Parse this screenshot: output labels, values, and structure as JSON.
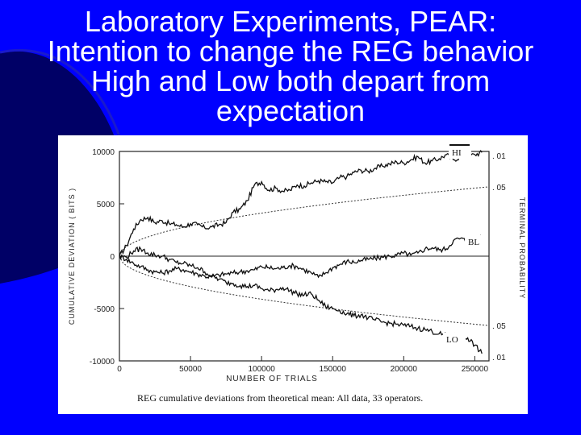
{
  "slide": {
    "title_lines": [
      "Laboratory Experiments, PEAR:",
      "Intention to change the REG behavior",
      "High and Low both depart from",
      "expectation"
    ],
    "background_color": "#0000ff",
    "accent_color": "#000066"
  },
  "chart_data": {
    "type": "line",
    "title": "",
    "caption": "REG cumulative deviations from theoretical mean: All data, 33 operators.",
    "xlabel": "NUMBER OF TRIALS",
    "ylabel": "CUMULATIVE DEVIATION ( BITS )",
    "y2label": "TERMINAL PROBABILITY",
    "xlim": [
      0,
      260000
    ],
    "ylim": [
      -10000,
      10000
    ],
    "x_ticks": [
      0,
      50000,
      100000,
      150000,
      200000,
      250000
    ],
    "y_ticks": [
      10000,
      5000,
      0,
      -5000,
      -10000
    ],
    "x_tick_labels": [
      "0",
      "50000",
      "100000",
      "150000",
      "200000",
      "250000"
    ],
    "y_tick_labels": [
      "10000",
      "5000",
      "0",
      "-5000",
      "-10000"
    ],
    "right_tick_labels": [
      ". 01",
      ". 05",
      ". 05",
      ". 01"
    ],
    "grid": false,
    "series": [
      {
        "name": "HI",
        "color": "#111111",
        "x": [
          0,
          5000,
          10000,
          15000,
          20000,
          25000,
          30000,
          35000,
          40000,
          45000,
          50000,
          55000,
          60000,
          65000,
          70000,
          75000,
          80000,
          85000,
          90000,
          95000,
          100000,
          105000,
          110000,
          115000,
          120000,
          125000,
          130000,
          135000,
          140000,
          145000,
          150000,
          155000,
          160000,
          165000,
          170000,
          175000,
          180000,
          185000,
          190000,
          195000,
          200000,
          205000,
          210000,
          215000,
          220000,
          225000,
          230000,
          235000,
          240000,
          245000,
          250000,
          255000
        ],
        "values": [
          0,
          1000,
          2600,
          3500,
          3700,
          3200,
          3400,
          3100,
          3000,
          2800,
          3100,
          3000,
          2700,
          2800,
          3000,
          3200,
          4200,
          4500,
          5300,
          6800,
          7100,
          6300,
          6500,
          6200,
          6300,
          6800,
          6700,
          7000,
          7200,
          7100,
          7000,
          7500,
          7600,
          8000,
          8200,
          8100,
          8400,
          8600,
          8800,
          9000,
          8900,
          9200,
          9500,
          8900,
          9100,
          9300,
          9700,
          9200,
          9500,
          9600,
          9700,
          9900
        ]
      },
      {
        "name": "BL",
        "color": "#111111",
        "x": [
          0,
          5000,
          10000,
          15000,
          20000,
          25000,
          30000,
          35000,
          40000,
          45000,
          50000,
          55000,
          60000,
          65000,
          70000,
          75000,
          80000,
          85000,
          90000,
          95000,
          100000,
          105000,
          110000,
          115000,
          120000,
          125000,
          130000,
          135000,
          140000,
          145000,
          150000,
          155000,
          160000,
          165000,
          170000,
          175000,
          180000,
          185000,
          190000,
          195000,
          200000,
          205000,
          210000,
          215000,
          220000,
          225000,
          230000,
          235000,
          240000,
          245000,
          250000,
          255000
        ],
        "values": [
          0,
          -300,
          -700,
          -1000,
          -1300,
          -1500,
          -1600,
          -1400,
          -1200,
          -1300,
          -1500,
          -1700,
          -1900,
          -2000,
          -1800,
          -1700,
          -1600,
          -1500,
          -1400,
          -1300,
          -1000,
          -1100,
          -1200,
          -1100,
          -900,
          -1000,
          -1300,
          -1600,
          -2000,
          -1600,
          -1100,
          -800,
          -500,
          -600,
          -400,
          -300,
          -200,
          -100,
          0,
          100,
          300,
          100,
          300,
          700,
          800,
          600,
          700,
          1500,
          1700,
          1400,
          1700,
          1700
        ]
      },
      {
        "name": "LO",
        "color": "#111111",
        "x": [
          0,
          5000,
          10000,
          15000,
          20000,
          25000,
          30000,
          35000,
          40000,
          45000,
          50000,
          55000,
          60000,
          65000,
          70000,
          75000,
          80000,
          85000,
          90000,
          95000,
          100000,
          105000,
          110000,
          115000,
          120000,
          125000,
          130000,
          135000,
          140000,
          145000,
          150000,
          155000,
          160000,
          165000,
          170000,
          175000,
          180000,
          185000,
          190000,
          195000,
          200000,
          205000,
          210000,
          215000,
          220000,
          225000,
          230000,
          235000,
          240000,
          245000,
          250000,
          255000
        ],
        "values": [
          0,
          -100,
          500,
          700,
          300,
          100,
          0,
          -300,
          -600,
          -700,
          -900,
          -1100,
          -1500,
          -1900,
          -2200,
          -2500,
          -2600,
          -2800,
          -2900,
          -2800,
          -3100,
          -3300,
          -3200,
          -3000,
          -3300,
          -3600,
          -3700,
          -3600,
          -4200,
          -4800,
          -5000,
          -5200,
          -5500,
          -5700,
          -5600,
          -5900,
          -6100,
          -6300,
          -6400,
          -6500,
          -6600,
          -6700,
          -6900,
          -7000,
          -7200,
          -7400,
          -7600,
          -7600,
          -7800,
          -7800,
          -8500,
          -9300
        ]
      }
    ],
    "reference_curves": [
      {
        "name": "+.05 envelope",
        "style": "dashed",
        "k": 1.645
      },
      {
        "name": "-.05 envelope",
        "style": "dashed",
        "k": -1.645
      }
    ],
    "zero_line": 0
  }
}
